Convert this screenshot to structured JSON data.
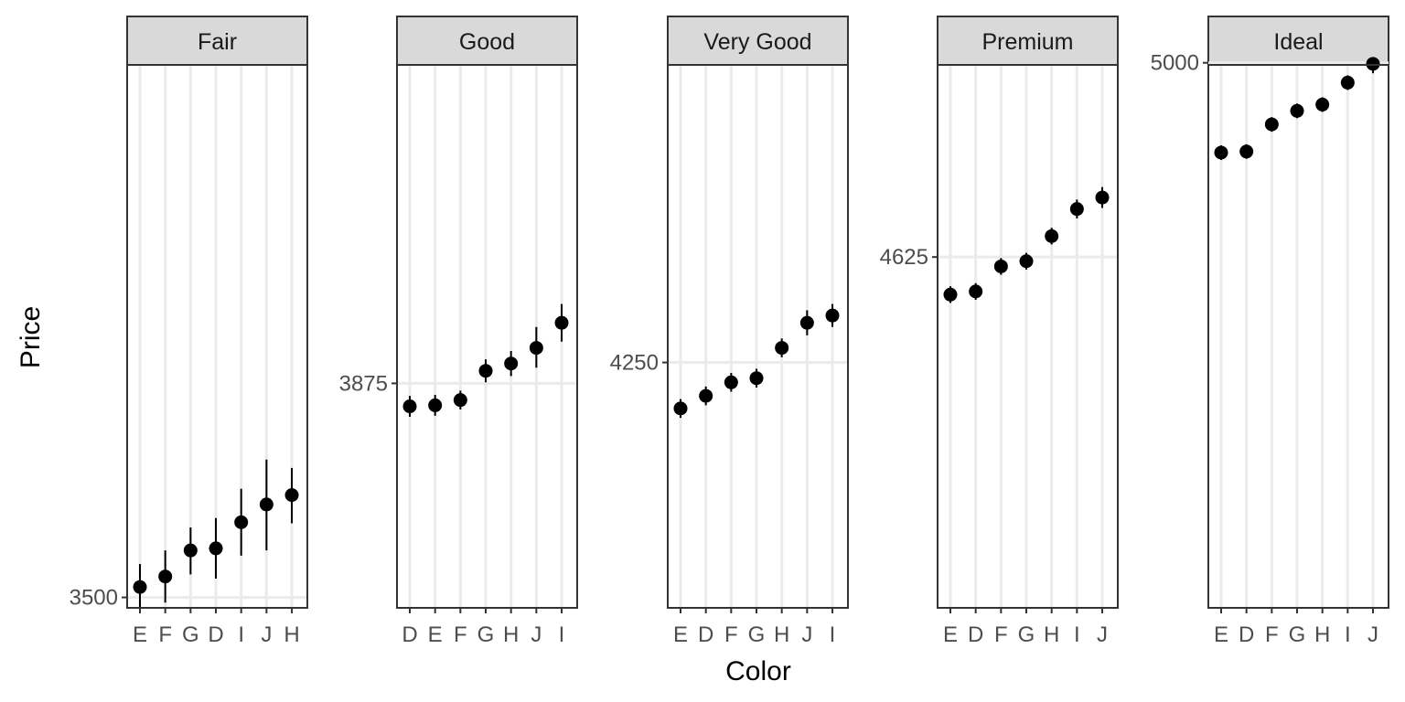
{
  "chart_data": {
    "type": "scatter",
    "xlabel": "Color",
    "ylabel": "Price",
    "grid": true,
    "facets": [
      {
        "title": "Fair",
        "ylim": [
          3490,
          4010
        ],
        "ytick": 3500,
        "points": [
          {
            "x": "E",
            "y": 3510,
            "low": 3482,
            "high": 3532
          },
          {
            "x": "F",
            "y": 3520,
            "low": 3495,
            "high": 3545
          },
          {
            "x": "G",
            "y": 3545,
            "low": 3522,
            "high": 3567
          },
          {
            "x": "D",
            "y": 3547,
            "low": 3518,
            "high": 3576
          },
          {
            "x": "I",
            "y": 3572,
            "low": 3540,
            "high": 3604
          },
          {
            "x": "J",
            "y": 3589,
            "low": 3545,
            "high": 3632
          },
          {
            "x": "H",
            "y": 3598,
            "low": 3571,
            "high": 3624
          }
        ]
      },
      {
        "title": "Good",
        "ylim": [
          3660,
          4180
        ],
        "ytick": 3875,
        "points": [
          {
            "x": "D",
            "y": 3853,
            "low": 3843,
            "high": 3863
          },
          {
            "x": "E",
            "y": 3854,
            "low": 3844,
            "high": 3864
          },
          {
            "x": "F",
            "y": 3859,
            "low": 3850,
            "high": 3868
          },
          {
            "x": "G",
            "y": 3887,
            "low": 3876,
            "high": 3898
          },
          {
            "x": "H",
            "y": 3894,
            "low": 3882,
            "high": 3906
          },
          {
            "x": "J",
            "y": 3909,
            "low": 3890,
            "high": 3929
          },
          {
            "x": "I",
            "y": 3933,
            "low": 3915,
            "high": 3951
          }
        ]
      },
      {
        "title": "Very Good",
        "ylim": [
          4015,
          4535
        ],
        "ytick": 4250,
        "points": [
          {
            "x": "E",
            "y": 4206,
            "low": 4197,
            "high": 4215
          },
          {
            "x": "D",
            "y": 4218,
            "low": 4209,
            "high": 4227
          },
          {
            "x": "F",
            "y": 4231,
            "low": 4222,
            "high": 4240
          },
          {
            "x": "G",
            "y": 4235,
            "low": 4226,
            "high": 4244
          },
          {
            "x": "H",
            "y": 4264,
            "low": 4255,
            "high": 4273
          },
          {
            "x": "J",
            "y": 4288,
            "low": 4276,
            "high": 4300
          },
          {
            "x": "I",
            "y": 4295,
            "low": 4284,
            "high": 4306
          }
        ]
      },
      {
        "title": "Premium",
        "ylim": [
          4289,
          4809
        ],
        "ytick": 4625,
        "points": [
          {
            "x": "E",
            "y": 4589,
            "low": 4581,
            "high": 4597
          },
          {
            "x": "D",
            "y": 4592,
            "low": 4584,
            "high": 4600
          },
          {
            "x": "F",
            "y": 4616,
            "low": 4608,
            "high": 4624
          },
          {
            "x": "G",
            "y": 4621,
            "low": 4613,
            "high": 4629
          },
          {
            "x": "H",
            "y": 4645,
            "low": 4637,
            "high": 4653
          },
          {
            "x": "I",
            "y": 4671,
            "low": 4662,
            "high": 4680
          },
          {
            "x": "J",
            "y": 4682,
            "low": 4672,
            "high": 4692
          }
        ]
      },
      {
        "title": "Ideal",
        "ylim": [
          4478,
          4998
        ],
        "ytick": 5000,
        "points": [
          {
            "x": "E",
            "y": 4914,
            "low": 4907,
            "high": 4921
          },
          {
            "x": "D",
            "y": 4915,
            "low": 4908,
            "high": 4922
          },
          {
            "x": "F",
            "y": 4941,
            "low": 4934,
            "high": 4948
          },
          {
            "x": "G",
            "y": 4954,
            "low": 4947,
            "high": 4961
          },
          {
            "x": "H",
            "y": 4960,
            "low": 4953,
            "high": 4967
          },
          {
            "x": "I",
            "y": 4981,
            "low": 4974,
            "high": 4988
          },
          {
            "x": "J",
            "y": 4999,
            "low": 4990,
            "high": 5008
          }
        ]
      }
    ]
  }
}
